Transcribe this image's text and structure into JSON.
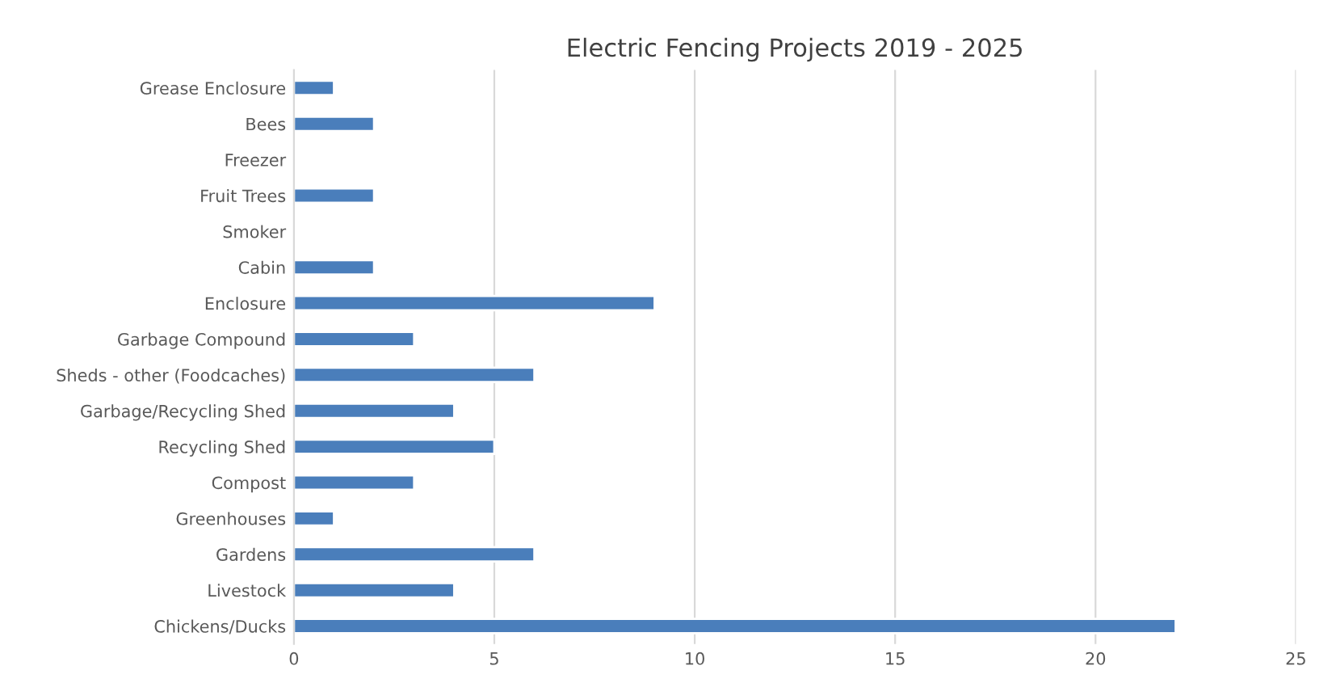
{
  "chart_data": {
    "type": "bar",
    "orientation": "horizontal",
    "title": "Electric Fencing Projects 2019 - 2025",
    "categories": [
      "Grease Enclosure",
      "Bees",
      "Freezer",
      "Fruit Trees",
      "Smoker",
      "Cabin",
      "Enclosure",
      "Garbage Compound",
      "Sheds - other (Foodcaches)",
      "Garbage/Recycling Shed",
      "Recycling Shed",
      "Compost",
      "Greenhouses",
      "Gardens",
      "Livestock",
      "Chickens/Ducks"
    ],
    "values": [
      1,
      2,
      null,
      2,
      null,
      2,
      9,
      3,
      6,
      4,
      5,
      3,
      1,
      6,
      4,
      22
    ],
    "color": "#4a7ebb",
    "xlim": [
      0,
      25
    ],
    "xticks": [
      0,
      5,
      10,
      15,
      20,
      25
    ],
    "grid": "x",
    "legend": false
  }
}
